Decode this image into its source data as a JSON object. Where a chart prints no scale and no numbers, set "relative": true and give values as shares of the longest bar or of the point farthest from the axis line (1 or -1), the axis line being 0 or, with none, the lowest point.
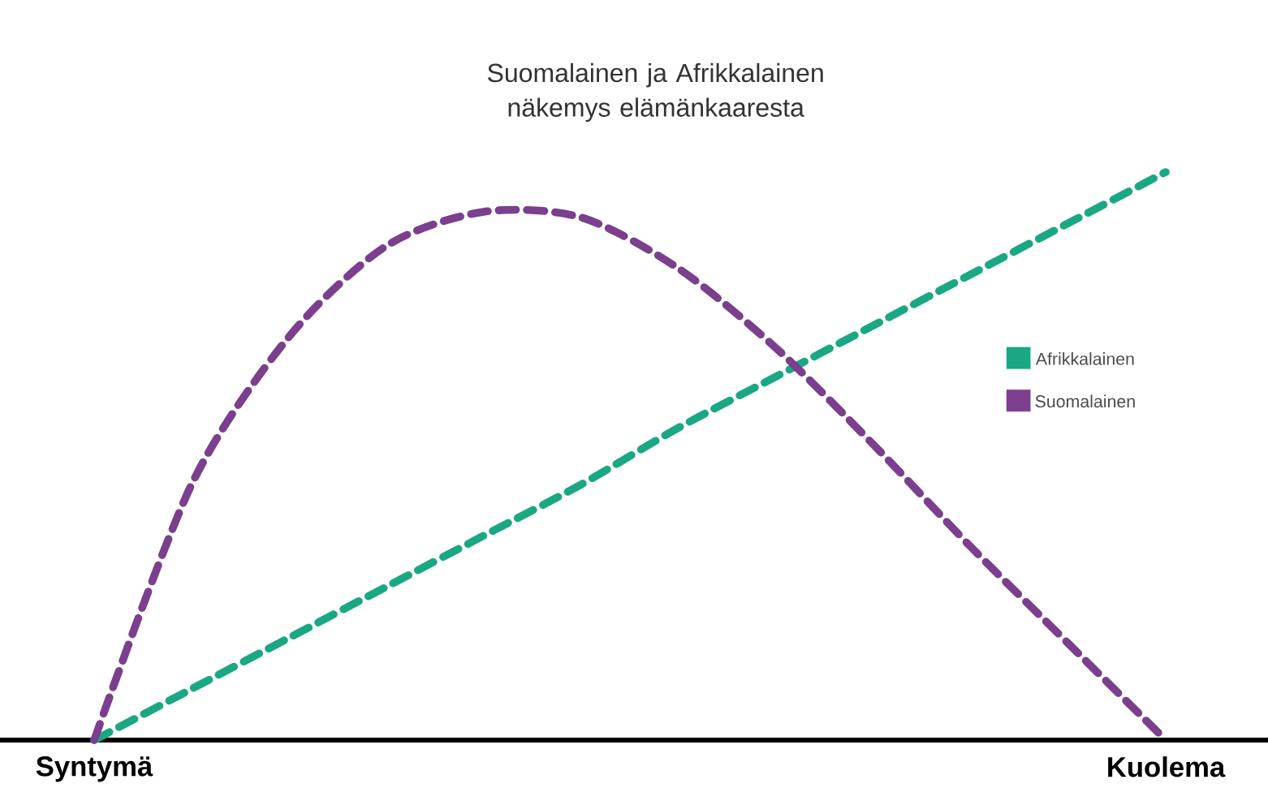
{
  "chart_data": {
    "type": "line",
    "title": "Suomalainen ja Afrikkalainen näkemys elämänkaaresta",
    "relative": true,
    "categories": [
      "Syntymä",
      null,
      null,
      null,
      null,
      null,
      null,
      null,
      null,
      null,
      null,
      "Kuolema"
    ],
    "series": [
      {
        "name": "Afrikkalainen",
        "color": "#1aa883",
        "values": [
          0,
          0.09,
          0.18,
          0.27,
          0.36,
          0.45,
          0.55,
          0.64,
          0.73,
          0.82,
          0.91,
          1
        ]
      },
      {
        "name": "Suomalainen",
        "color": "#7b3f8e",
        "values": [
          0,
          0.45,
          0.71,
          0.87,
          0.93,
          0.92,
          0.83,
          0.69,
          0.52,
          0.34,
          0.17,
          0
        ]
      }
    ],
    "legend": "right",
    "line_style": "dashed",
    "marker": "none"
  }
}
